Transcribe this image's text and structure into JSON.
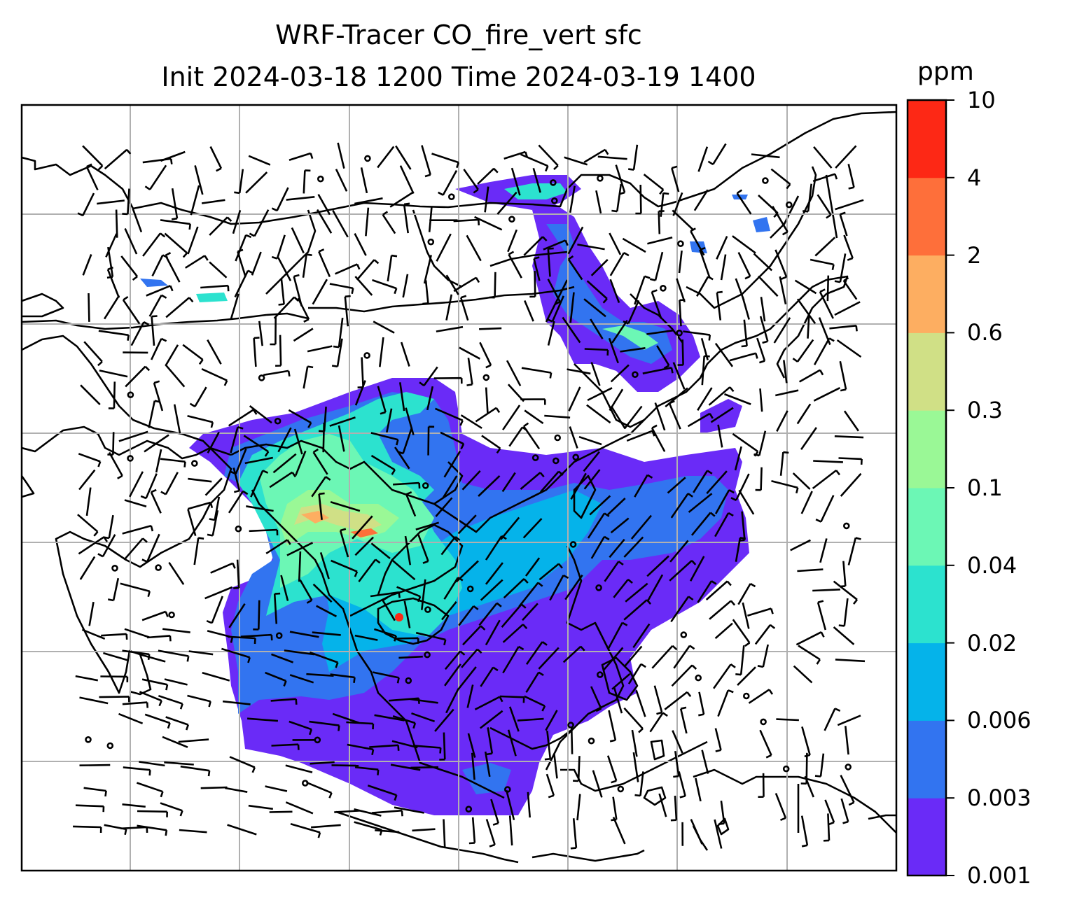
{
  "title_line1": "WRF-Tracer CO_fire_vert sfc",
  "title_line2": "Init 2024-03-18 1200 Time 2024-03-19 1400",
  "colorbar": {
    "unit": "ppm",
    "levels": [
      "0.001",
      "0.003",
      "0.006",
      "0.02",
      "0.04",
      "0.1",
      "0.3",
      "0.6",
      "2",
      "4",
      "10"
    ],
    "colors": [
      "#6a2bf7",
      "#3274f0",
      "#05b3ea",
      "#2ce2cf",
      "#6cf7b5",
      "#9af896",
      "#d0e086",
      "#fdae61",
      "#fe6f3a",
      "#fd2815"
    ]
  }
}
